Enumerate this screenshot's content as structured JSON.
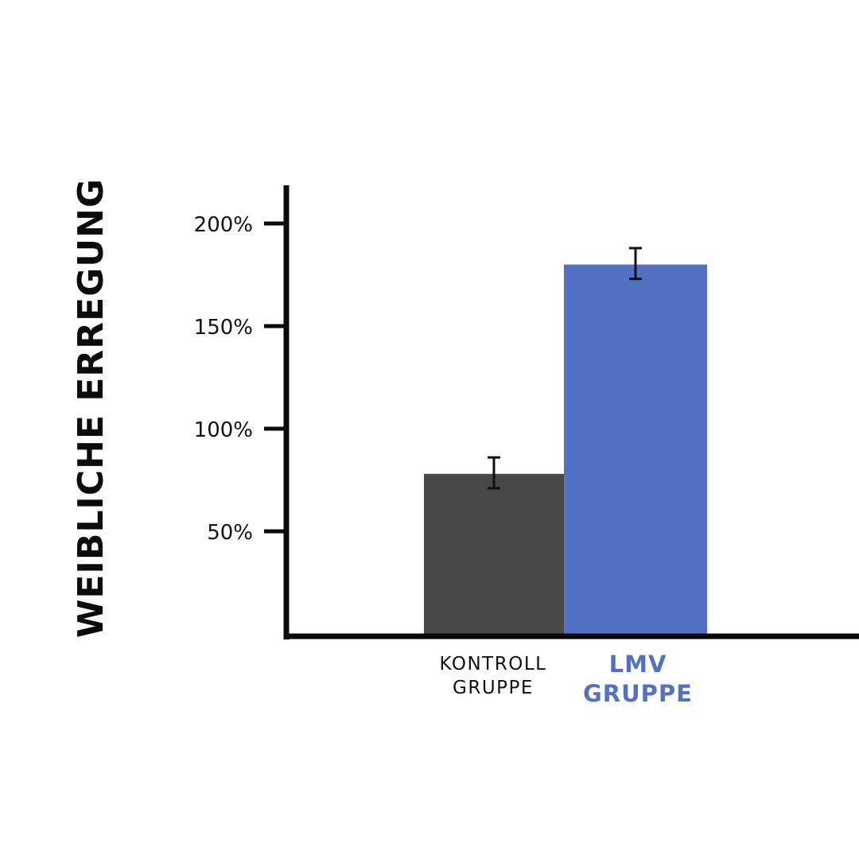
{
  "chart_data": {
    "type": "bar",
    "title": "",
    "ylabel": "WEIBLICHE ERREGUNG",
    "xlabel": "",
    "ylim": [
      0,
      218
    ],
    "yticks": [
      50,
      100,
      150,
      200
    ],
    "ytick_labels": [
      "50%",
      "100%",
      "150%",
      "200%"
    ],
    "grid": false,
    "categories": [
      {
        "line1": "KONTROLL",
        "line2": "GRUPPE",
        "emphasis": false
      },
      {
        "line1": "LMV",
        "line2": "GRUPPE",
        "emphasis": true
      }
    ],
    "values": [
      78,
      180
    ],
    "error": [
      [
        71,
        86
      ],
      [
        173,
        188
      ]
    ],
    "colors": [
      "#484848",
      "#5271c4"
    ],
    "axis_color": "#0b0b0b"
  }
}
